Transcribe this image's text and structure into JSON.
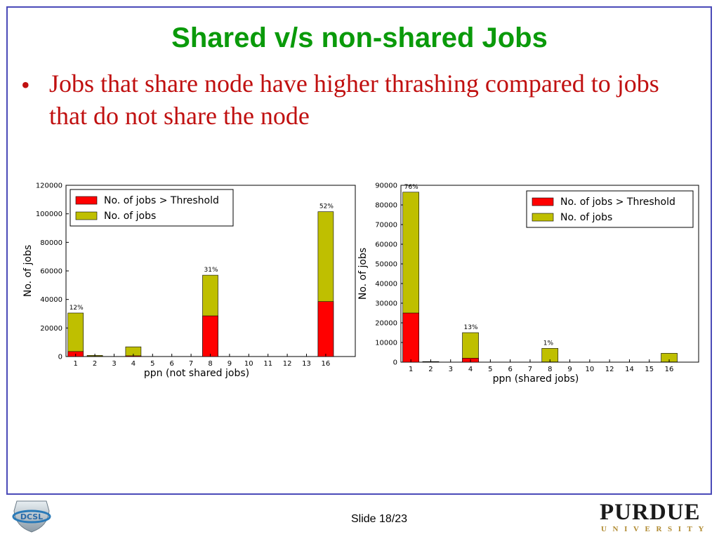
{
  "slide": {
    "title": "Shared v/s non-shared Jobs",
    "bullet": "•",
    "bullet_text": "Jobs that share node have higher thrashing compared to jobs that do not share the node",
    "slide_number": "Slide 18/23",
    "purdue_word": "PURDUE",
    "purdue_sub": "UNIVERSITY",
    "left_logo_text": "DCSL"
  },
  "colors": {
    "title": "#0a9a0a",
    "bullet": "#c01010",
    "threshold": "#ff0000",
    "jobs": "#bfbf00",
    "frame": "#4a4ab8"
  },
  "chart_data": [
    {
      "type": "bar",
      "title": "",
      "xlabel": "ppn (not shared jobs)",
      "ylabel": "No. of jobs",
      "ylim": [
        0,
        120000
      ],
      "yticks": [
        0,
        20000,
        40000,
        60000,
        80000,
        100000,
        120000
      ],
      "categories": [
        "1",
        "2",
        "3",
        "4",
        "5",
        "6",
        "7",
        "8",
        "9",
        "10",
        "11",
        "12",
        "13",
        "16"
      ],
      "series": [
        {
          "name": "No. of jobs",
          "values": [
            30500,
            800,
            0,
            6800,
            0,
            0,
            0,
            57000,
            0,
            0,
            0,
            0,
            0,
            101500
          ]
        },
        {
          "name": "No. of jobs > Threshold",
          "values": [
            3500,
            200,
            0,
            500,
            0,
            0,
            0,
            28500,
            0,
            0,
            0,
            0,
            0,
            38500
          ]
        }
      ],
      "annotations": [
        {
          "category": "1",
          "text": "12%"
        },
        {
          "category": "8",
          "text": "31%"
        },
        {
          "category": "16",
          "text": "52%"
        }
      ],
      "legend": "top-left",
      "legend_entries": [
        "No. of jobs > Threshold",
        "No. of jobs"
      ],
      "grid": false
    },
    {
      "type": "bar",
      "title": "",
      "xlabel": "ppn (shared jobs)",
      "ylabel": "No. of jobs",
      "ylim": [
        0,
        90000
      ],
      "yticks": [
        0,
        10000,
        20000,
        30000,
        40000,
        50000,
        60000,
        70000,
        80000,
        90000
      ],
      "categories": [
        "1",
        "2",
        "3",
        "4",
        "5",
        "6",
        "7",
        "8",
        "9",
        "10",
        "12",
        "14",
        "15",
        "16"
      ],
      "series": [
        {
          "name": "No. of jobs",
          "values": [
            86500,
            300,
            0,
            15000,
            0,
            0,
            0,
            7000,
            0,
            0,
            0,
            0,
            0,
            4500
          ]
        },
        {
          "name": "No. of jobs > Threshold",
          "values": [
            25000,
            100,
            0,
            2000,
            0,
            0,
            0,
            100,
            0,
            0,
            0,
            0,
            0,
            100
          ]
        }
      ],
      "annotations": [
        {
          "category": "1",
          "text": "76%"
        },
        {
          "category": "4",
          "text": "13%"
        },
        {
          "category": "8",
          "text": "1%"
        }
      ],
      "legend": "top-right",
      "legend_entries": [
        "No. of jobs > Threshold",
        "No. of jobs"
      ],
      "grid": false
    }
  ]
}
